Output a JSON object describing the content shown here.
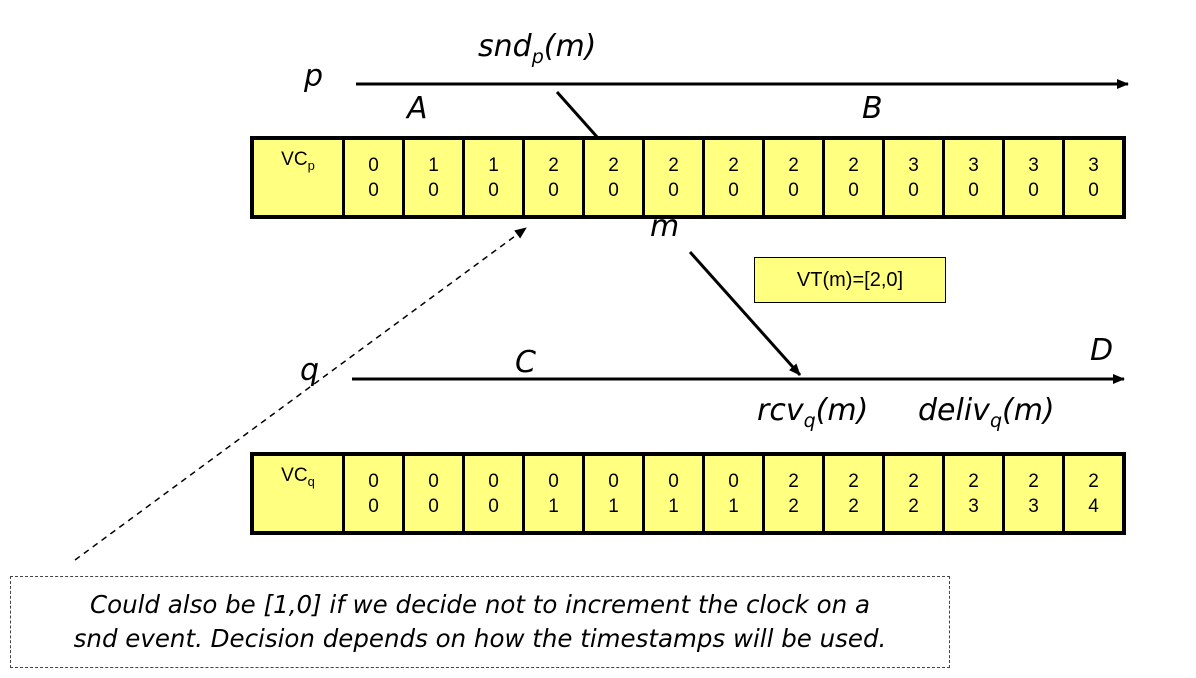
{
  "labels": {
    "p": "p",
    "q": "q",
    "snd_base": "snd",
    "snd_sub": "p",
    "snd_suffix": "(m)",
    "A": "A",
    "B": "B",
    "C": "C",
    "D": "D",
    "m": "m",
    "rcv_base": "rcv",
    "rcv_sub": "q",
    "rcv_suffix": "(m)",
    "deliv_base": "deliv",
    "deliv_sub": "q",
    "deliv_suffix": "(m)"
  },
  "vc_p": {
    "head_base": "VC",
    "head_sub": "p",
    "cells": [
      [
        "0",
        "0"
      ],
      [
        "1",
        "0"
      ],
      [
        "1",
        "0"
      ],
      [
        "2",
        "0"
      ],
      [
        "2",
        "0"
      ],
      [
        "2",
        "0"
      ],
      [
        "2",
        "0"
      ],
      [
        "2",
        "0"
      ],
      [
        "2",
        "0"
      ],
      [
        "3",
        "0"
      ],
      [
        "3",
        "0"
      ],
      [
        "3",
        "0"
      ],
      [
        "3",
        "0"
      ]
    ]
  },
  "vc_q": {
    "head_base": "VC",
    "head_sub": "q",
    "cells": [
      [
        "0",
        "0"
      ],
      [
        "0",
        "0"
      ],
      [
        "0",
        "0"
      ],
      [
        "0",
        "1"
      ],
      [
        "0",
        "1"
      ],
      [
        "0",
        "1"
      ],
      [
        "0",
        "1"
      ],
      [
        "2",
        "2"
      ],
      [
        "2",
        "2"
      ],
      [
        "2",
        "2"
      ],
      [
        "2",
        "3"
      ],
      [
        "2",
        "3"
      ],
      [
        "2",
        "4"
      ]
    ]
  },
  "vt_box": "VT(m)=[2,0]",
  "note": {
    "line1": "Could also be [1,0] if we decide not to increment the clock on a",
    "line2": "snd event.  Decision depends on how the timestamps will be used."
  },
  "colors": {
    "cell_fill": "#ffff80",
    "line": "#000000"
  }
}
